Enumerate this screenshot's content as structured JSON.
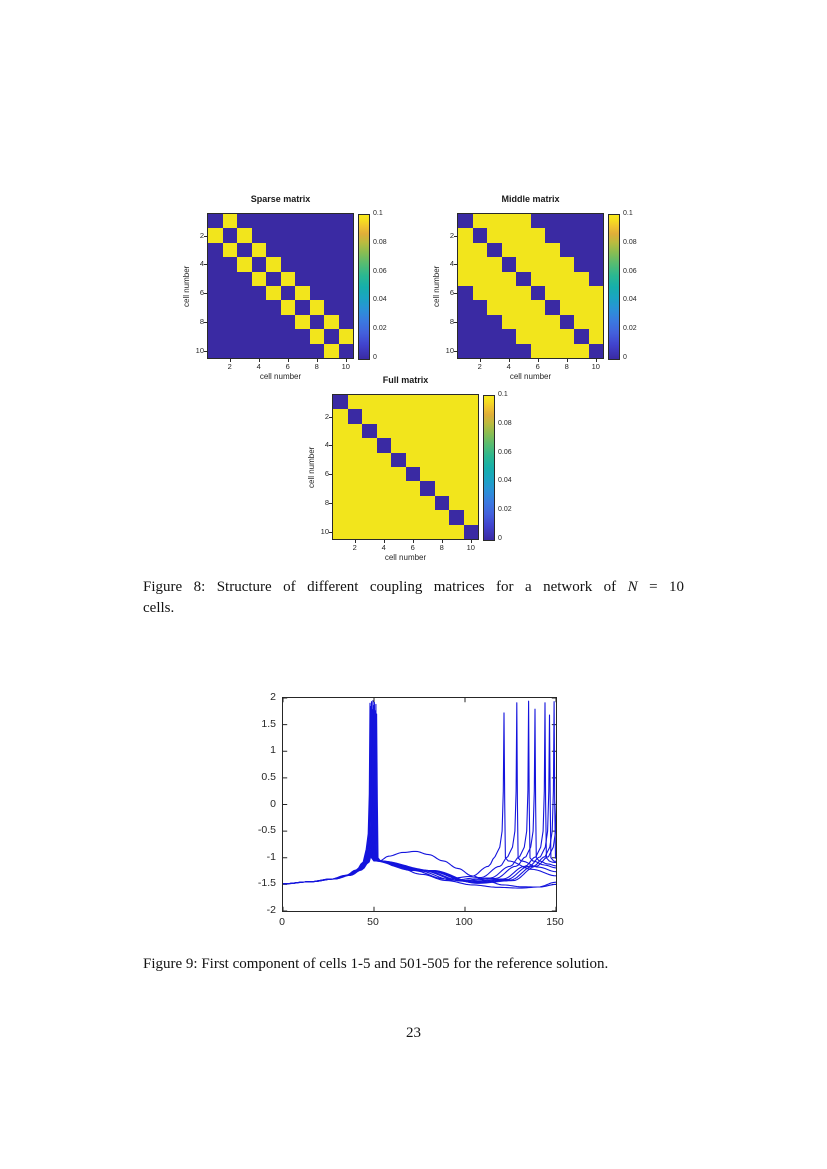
{
  "page": {
    "number": "23"
  },
  "captions": {
    "figure8": {
      "line1_pre": "Figure 8: Structure of different coupling matrices for a network of ",
      "line1_math": "N",
      "line1_post": " = 10",
      "line2": "cells."
    },
    "figure9": "Figure 9: First component of cells 1-5 and 501-505 for the reference solution."
  },
  "colors": {
    "heat_low": "#3a2aa3",
    "heat_high": "#f2e51c",
    "trace_blue": "#1414dd",
    "axis": "#262626"
  },
  "chart_data": [
    {
      "id": "sparse-matrix",
      "type": "heatmap",
      "title": "Sparse matrix",
      "xlabel": "cell number",
      "ylabel": "cell number",
      "n": 10,
      "xticks": [
        2,
        4,
        6,
        8,
        10
      ],
      "yticks": [
        2,
        4,
        6,
        8,
        10
      ],
      "vmin": 0,
      "vmax": 0.1,
      "colorbar_ticks": [
        "0",
        "0.02",
        "0.04",
        "0.06",
        "0.08",
        "0.1"
      ],
      "color_low": "#3a2aa3",
      "color_high": "#f2e51c",
      "matrix": [
        [
          0,
          0.1,
          0,
          0,
          0,
          0,
          0,
          0,
          0,
          0
        ],
        [
          0.1,
          0,
          0.1,
          0,
          0,
          0,
          0,
          0,
          0,
          0
        ],
        [
          0,
          0.1,
          0,
          0.1,
          0,
          0,
          0,
          0,
          0,
          0
        ],
        [
          0,
          0,
          0.1,
          0,
          0.1,
          0,
          0,
          0,
          0,
          0
        ],
        [
          0,
          0,
          0,
          0.1,
          0,
          0.1,
          0,
          0,
          0,
          0
        ],
        [
          0,
          0,
          0,
          0,
          0.1,
          0,
          0.1,
          0,
          0,
          0
        ],
        [
          0,
          0,
          0,
          0,
          0,
          0.1,
          0,
          0.1,
          0,
          0
        ],
        [
          0,
          0,
          0,
          0,
          0,
          0,
          0.1,
          0,
          0.1,
          0
        ],
        [
          0,
          0,
          0,
          0,
          0,
          0,
          0,
          0.1,
          0,
          0.1
        ],
        [
          0,
          0,
          0,
          0,
          0,
          0,
          0,
          0,
          0.1,
          0
        ]
      ]
    },
    {
      "id": "middle-matrix",
      "type": "heatmap",
      "title": "Middle matrix",
      "xlabel": "cell number",
      "ylabel": "cell number",
      "n": 10,
      "xticks": [
        2,
        4,
        6,
        8,
        10
      ],
      "yticks": [
        2,
        4,
        6,
        8,
        10
      ],
      "vmin": 0,
      "vmax": 0.1,
      "colorbar_ticks": [
        "0",
        "0.02",
        "0.04",
        "0.06",
        "0.08",
        "0.1"
      ],
      "color_low": "#3a2aa3",
      "color_high": "#f2e51c",
      "matrix": [
        [
          0,
          0.1,
          0.1,
          0.1,
          0.1,
          0,
          0,
          0,
          0,
          0
        ],
        [
          0.1,
          0,
          0.1,
          0.1,
          0.1,
          0.1,
          0,
          0,
          0,
          0
        ],
        [
          0.1,
          0.1,
          0,
          0.1,
          0.1,
          0.1,
          0.1,
          0,
          0,
          0
        ],
        [
          0.1,
          0.1,
          0.1,
          0,
          0.1,
          0.1,
          0.1,
          0.1,
          0,
          0
        ],
        [
          0.1,
          0.1,
          0.1,
          0.1,
          0,
          0.1,
          0.1,
          0.1,
          0.1,
          0
        ],
        [
          0,
          0.1,
          0.1,
          0.1,
          0.1,
          0,
          0.1,
          0.1,
          0.1,
          0.1
        ],
        [
          0,
          0,
          0.1,
          0.1,
          0.1,
          0.1,
          0,
          0.1,
          0.1,
          0.1
        ],
        [
          0,
          0,
          0,
          0.1,
          0.1,
          0.1,
          0.1,
          0,
          0.1,
          0.1
        ],
        [
          0,
          0,
          0,
          0,
          0.1,
          0.1,
          0.1,
          0.1,
          0,
          0.1
        ],
        [
          0,
          0,
          0,
          0,
          0,
          0.1,
          0.1,
          0.1,
          0.1,
          0
        ]
      ]
    },
    {
      "id": "full-matrix",
      "type": "heatmap",
      "title": "Full matrix",
      "xlabel": "cell number",
      "ylabel": "cell number",
      "n": 10,
      "xticks": [
        2,
        4,
        6,
        8,
        10
      ],
      "yticks": [
        2,
        4,
        6,
        8,
        10
      ],
      "vmin": 0,
      "vmax": 0.1,
      "colorbar_ticks": [
        "0",
        "0.02",
        "0.04",
        "0.06",
        "0.08",
        "0.1"
      ],
      "color_low": "#3a2aa3",
      "color_high": "#f2e51c",
      "matrix": [
        [
          0,
          0.1,
          0.1,
          0.1,
          0.1,
          0.1,
          0.1,
          0.1,
          0.1,
          0.1
        ],
        [
          0.1,
          0,
          0.1,
          0.1,
          0.1,
          0.1,
          0.1,
          0.1,
          0.1,
          0.1
        ],
        [
          0.1,
          0.1,
          0,
          0.1,
          0.1,
          0.1,
          0.1,
          0.1,
          0.1,
          0.1
        ],
        [
          0.1,
          0.1,
          0.1,
          0,
          0.1,
          0.1,
          0.1,
          0.1,
          0.1,
          0.1
        ],
        [
          0.1,
          0.1,
          0.1,
          0.1,
          0,
          0.1,
          0.1,
          0.1,
          0.1,
          0.1
        ],
        [
          0.1,
          0.1,
          0.1,
          0.1,
          0.1,
          0,
          0.1,
          0.1,
          0.1,
          0.1
        ],
        [
          0.1,
          0.1,
          0.1,
          0.1,
          0.1,
          0.1,
          0,
          0.1,
          0.1,
          0.1
        ],
        [
          0.1,
          0.1,
          0.1,
          0.1,
          0.1,
          0.1,
          0.1,
          0,
          0.1,
          0.1
        ],
        [
          0.1,
          0.1,
          0.1,
          0.1,
          0.1,
          0.1,
          0.1,
          0.1,
          0,
          0.1
        ],
        [
          0.1,
          0.1,
          0.1,
          0.1,
          0.1,
          0.1,
          0.1,
          0.1,
          0.1,
          0
        ]
      ]
    },
    {
      "id": "reference-solution",
      "type": "line",
      "title": "",
      "xlabel": "",
      "ylabel": "",
      "xlim": [
        0,
        150
      ],
      "ylim": [
        -2,
        2
      ],
      "xticks": [
        0,
        50,
        100,
        150
      ],
      "yticks": [
        -2,
        -1.5,
        -1,
        -0.5,
        0,
        0.5,
        1,
        1.5,
        2
      ],
      "line_color": "#1414dd",
      "start_value": -1.49,
      "post_spike_level": -1.05,
      "series": [
        {
          "name": "cell 1",
          "shape": "normal",
          "first_spike": 47.9,
          "first_peak": 1.9,
          "second_spike": 121.5,
          "second_peak": 1.72,
          "dip": -1.4
        },
        {
          "name": "cell 2",
          "shape": "normal",
          "first_spike": 48.3,
          "first_peak": 1.84,
          "second_spike": 128.5,
          "second_peak": 1.91,
          "dip": -1.42
        },
        {
          "name": "cell 3",
          "shape": "normal",
          "first_spike": 48.7,
          "first_peak": 1.93,
          "second_spike": 135.0,
          "second_peak": 1.94,
          "dip": -1.43
        },
        {
          "name": "cell 4",
          "shape": "normal",
          "first_spike": 49.1,
          "first_peak": 1.78,
          "second_spike": 138.5,
          "second_peak": 1.79,
          "dip": -1.44
        },
        {
          "name": "cell 5",
          "shape": "normal",
          "first_spike": 49.5,
          "first_peak": 1.95,
          "second_spike": 144.0,
          "second_peak": 1.91,
          "dip": -1.45
        },
        {
          "name": "cell 501",
          "shape": "normal",
          "first_spike": 49.9,
          "first_peak": 1.86,
          "second_spike": 146.5,
          "second_peak": 1.68,
          "dip": -1.46
        },
        {
          "name": "cell 502",
          "shape": "normal",
          "first_spike": 50.3,
          "first_peak": 1.92,
          "second_spike": 149.0,
          "second_peak": 1.93,
          "dip": -1.47
        },
        {
          "name": "cell 503",
          "shape": "normal",
          "first_spike": 50.7,
          "first_peak": 1.76,
          "second_spike": 150.9,
          "second_peak": 1.9,
          "dip": -1.48
        },
        {
          "name": "cell 504",
          "shape": "hump",
          "first_spike": 51.1,
          "first_peak": 1.88,
          "second_spike": null,
          "second_peak": null,
          "dip": -1.55
        },
        {
          "name": "cell 505",
          "shape": "low",
          "first_spike": 51.5,
          "first_peak": 1.7,
          "second_spike": null,
          "second_peak": null,
          "dip": -1.57
        }
      ]
    }
  ]
}
